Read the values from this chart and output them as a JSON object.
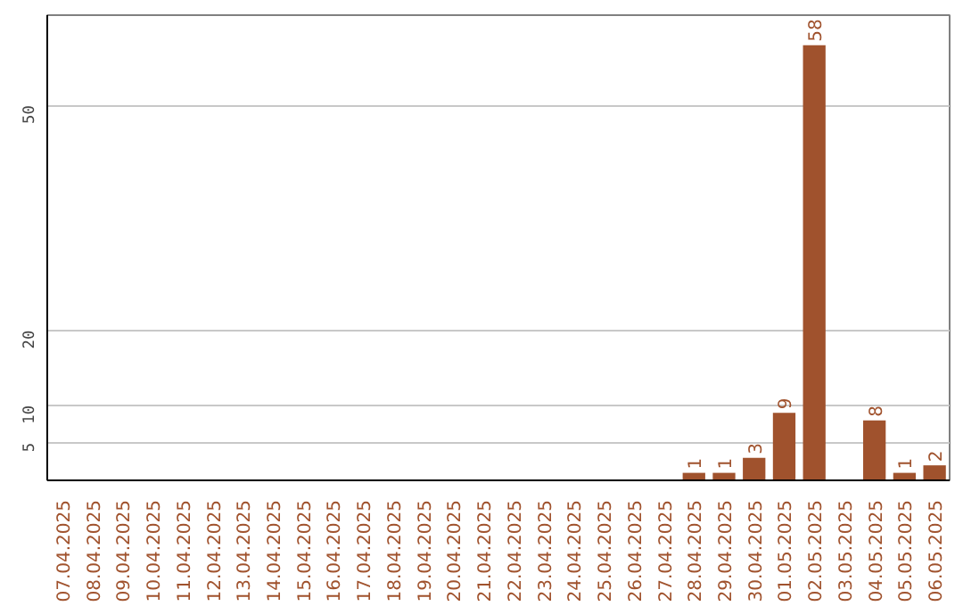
{
  "chart_data": {
    "type": "bar",
    "categories": [
      "07.04.2025",
      "08.04.2025",
      "09.04.2025",
      "10.04.2025",
      "11.04.2025",
      "12.04.2025",
      "13.04.2025",
      "14.04.2025",
      "15.04.2025",
      "16.04.2025",
      "17.04.2025",
      "18.04.2025",
      "19.04.2025",
      "20.04.2025",
      "21.04.2025",
      "22.04.2025",
      "23.04.2025",
      "24.04.2025",
      "25.04.2025",
      "26.04.2025",
      "27.04.2025",
      "28.04.2025",
      "29.04.2025",
      "30.04.2025",
      "01.05.2025",
      "02.05.2025",
      "03.05.2025",
      "04.05.2025",
      "05.05.2025",
      "06.05.2025"
    ],
    "values": [
      0,
      0,
      0,
      0,
      0,
      0,
      0,
      0,
      0,
      0,
      0,
      0,
      0,
      0,
      0,
      0,
      0,
      0,
      0,
      0,
      0,
      1,
      1,
      3,
      9,
      58,
      0,
      8,
      1,
      2
    ],
    "value_labels": [
      null,
      null,
      null,
      null,
      null,
      null,
      null,
      null,
      null,
      null,
      null,
      null,
      null,
      null,
      null,
      null,
      null,
      null,
      null,
      null,
      null,
      "1",
      "1",
      "3",
      "9",
      "58",
      null,
      "8",
      "1",
      "2"
    ],
    "color": "#a0522d",
    "ylim": [
      0,
      62
    ],
    "yticks": [
      5,
      10,
      20,
      50
    ],
    "grid": "y"
  }
}
